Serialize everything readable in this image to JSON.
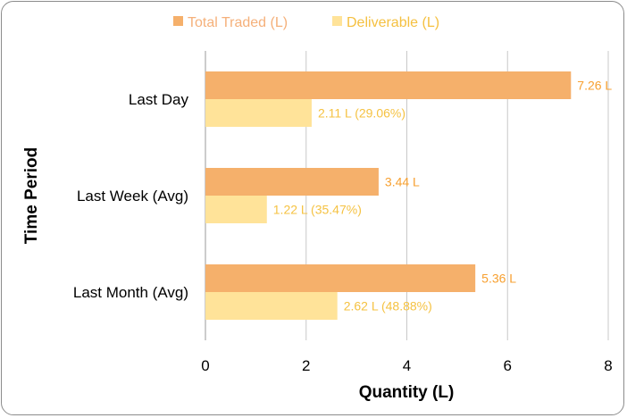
{
  "chart_data": {
    "type": "bar",
    "orientation": "horizontal",
    "title": "",
    "xlabel": "Quantity (L)",
    "ylabel": "Time Period",
    "xlim": [
      0,
      8
    ],
    "xticks": [
      "0",
      "2",
      "4",
      "6",
      "8"
    ],
    "grid": true,
    "legend_position": "top",
    "categories": [
      "Last Day",
      "Last Week (Avg)",
      "Last Month (Avg)"
    ],
    "series": [
      {
        "name": "Total Traded (L)",
        "color": "#F5B06B",
        "label_color": "#F7A030",
        "legend_text_color": "#F5B07A",
        "values": [
          7.26,
          3.44,
          5.36
        ],
        "labels": [
          "7.26 L",
          "3.44 L",
          "5.36 L"
        ]
      },
      {
        "name": "Deliverable (L)",
        "color": "#FFE399",
        "label_color": "#F5C242",
        "legend_text_color": "#F5C040",
        "values": [
          2.11,
          1.22,
          2.62
        ],
        "labels": [
          "2.11 L (29.06%)",
          "1.22 L (35.47%)",
          "2.62 L (48.88%)"
        ]
      }
    ]
  }
}
